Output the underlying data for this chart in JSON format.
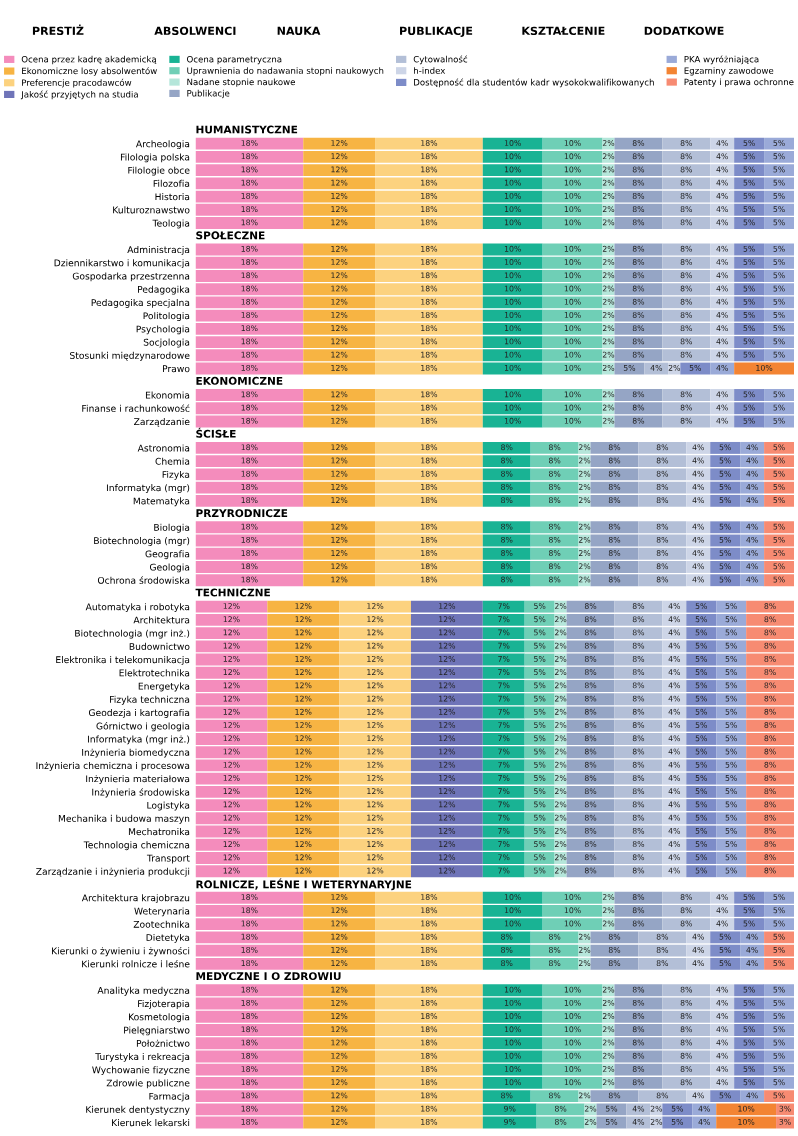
{
  "chart_data": {
    "type": "bar",
    "orientation": "horizontal",
    "stacked": true,
    "xlim": [
      0,
      100
    ],
    "tick_labels": "y",
    "grid": false,
    "legend": "top",
    "annotations": [
      "PRESTIŻ",
      "ABSOLWENCI",
      "NAUKA",
      "PUBLIKACJE",
      "KSZTAŁCENIE",
      "DODATKOWE"
    ],
    "categories": [
      "HUMANISTYCZNE",
      "Archeologia",
      "Filologia polska",
      "Filologie obce",
      "Filozofia",
      "Historia",
      "Kulturoznawstwo",
      "Teologia",
      "SPOŁECZNE",
      "Administracja",
      "Dziennikarstwo i komunikacja",
      "Gospodarka przestrzenna",
      "Pedagogika",
      "Pedagogika specjalna",
      "Politologia",
      "Psychologia",
      "Socjologia",
      "Stosunki międzynarodowe",
      "Prawo",
      "EKONOMICZNE",
      "Ekonomia",
      "Finanse i rachunkowość",
      "Zarządzanie",
      "ŚCISŁE",
      "Astronomia",
      "Chemia",
      "Fizyka",
      "Informatyka (mgr)",
      "Matematyka",
      "PRZYRODNICZE",
      "Biologia",
      "Biotechnologia (mgr)",
      "Geografia",
      "Geologia",
      "Ochrona środowiska",
      "TECHNICZNE",
      "Automatyka i robotyka",
      "Architektura",
      "Biotechnologia (mgr inż.)",
      "Budownictwo",
      "Elektronika i telekomunikacja",
      "Elektrotechnika",
      "Energetyka",
      "Fizyka techniczna",
      "Geodezja i kartografia",
      "Górnictwo i geologia",
      "Informatyka (mgr inż.)",
      "Inżynieria biomedyczna",
      "Inżynieria chemiczna i procesowa",
      "Inżynieria materiałowa",
      "Inżynieria środowiska",
      "Logistyka",
      "Mechanika i budowa maszyn",
      "Mechatronika",
      "Technologia chemiczna",
      "Transport",
      "Zarządzanie i inżynieria produkcji",
      "ROLNICZE, LEŚNE I WETERYNARYJNE",
      "Architektura krajobrazu",
      "Weterynaria",
      "Zootechnika",
      "Dietetyka",
      "Kierunki o żywieniu i żywności",
      "Kierunki rolnicze i leśne",
      "MEDYCZNE I O ZDROWIU",
      "Analityka medyczna",
      "Fizjoterapia",
      "Kosmetologia",
      "Pielęgniarstwo",
      "Położnictwo",
      "Turystyka i rekreacja",
      "Wychowanie fizyczne",
      "Zdrowie publiczne",
      "Farmacja",
      "Kierunek dentystyczny",
      "Kierunek lekarski"
    ],
    "series": [
      {
        "name": "Ocena przez kadrę akademicką",
        "color": "#f48cbc",
        "values": [
          null,
          18,
          18,
          18,
          18,
          18,
          18,
          18,
          null,
          18,
          18,
          18,
          18,
          18,
          18,
          18,
          18,
          18,
          18,
          null,
          18,
          18,
          18,
          null,
          18,
          18,
          18,
          18,
          18,
          null,
          18,
          18,
          18,
          18,
          18,
          null,
          12,
          12,
          12,
          12,
          12,
          12,
          12,
          12,
          12,
          12,
          12,
          12,
          12,
          12,
          12,
          12,
          12,
          12,
          12,
          12,
          12,
          null,
          18,
          18,
          18,
          18,
          18,
          18,
          null,
          18,
          18,
          18,
          18,
          18,
          18,
          18,
          18,
          18,
          18,
          18
        ],
        "value_labels": [
          null,
          "18%",
          "18%",
          "18%",
          "18%",
          "18%",
          "18%",
          "18%",
          null,
          "18%",
          "18%",
          "18%",
          "18%",
          "18%",
          "18%",
          "18%",
          "18%",
          "18%",
          "18%",
          null,
          "18%",
          "18%",
          "18%",
          null,
          "18%",
          "18%",
          "18%",
          "18%",
          "18%",
          null,
          "18%",
          "18%",
          "18%",
          "18%",
          "18%",
          null,
          "12%",
          "12%",
          "12%",
          "12%",
          "12%",
          "12%",
          "12%",
          "12%",
          "12%",
          "12%",
          "12%",
          "12%",
          "12%",
          "12%",
          "12%",
          "12%",
          "12%",
          "12%",
          "12%",
          "12%",
          "12%",
          null,
          "18%",
          "18%",
          "18%",
          "18%",
          "18%",
          "18%",
          null,
          "18%",
          "18%",
          "18%",
          "18%",
          "18%",
          "18%",
          "18%",
          "18%",
          "18%",
          "18%",
          "18%"
        ]
      },
      {
        "name": "Ekonomiczne losy absolwentów",
        "color": "#f7b443",
        "values": [
          null,
          12,
          12,
          12,
          12,
          12,
          12,
          12,
          null,
          12,
          12,
          12,
          12,
          12,
          12,
          12,
          12,
          12,
          12,
          null,
          12,
          12,
          12,
          null,
          12,
          12,
          12,
          12,
          12,
          null,
          12,
          12,
          12,
          12,
          12,
          null,
          12,
          12,
          12,
          12,
          12,
          12,
          12,
          12,
          12,
          12,
          12,
          12,
          12,
          12,
          12,
          12,
          12,
          12,
          12,
          12,
          12,
          null,
          12,
          12,
          12,
          12,
          12,
          12,
          null,
          12,
          12,
          12,
          12,
          12,
          12,
          12,
          12,
          12,
          12,
          12
        ],
        "value_labels": [
          null,
          "12%",
          "12%",
          "12%",
          "12%",
          "12%",
          "12%",
          "12%",
          null,
          "12%",
          "12%",
          "12%",
          "12%",
          "12%",
          "12%",
          "12%",
          "12%",
          "12%",
          "12%",
          null,
          "12%",
          "12%",
          "12%",
          null,
          "12%",
          "12%",
          "12%",
          "12%",
          "12%",
          null,
          "12%",
          "12%",
          "12%",
          "12%",
          "12%",
          null,
          "12%",
          "12%",
          "12%",
          "12%",
          "12%",
          "12%",
          "12%",
          "12%",
          "12%",
          "12%",
          "12%",
          "12%",
          "12%",
          "12%",
          "12%",
          "12%",
          "12%",
          "12%",
          "12%",
          "12%",
          "12%",
          null,
          "12%",
          "12%",
          "12%",
          "12%",
          "12%",
          "12%",
          null,
          "12%",
          "12%",
          "12%",
          "12%",
          "12%",
          "12%",
          "12%",
          "12%",
          "12%",
          "12%",
          "12%"
        ]
      },
      {
        "name": "Preferencje pracodawców",
        "color": "#fcd27f",
        "values": [
          null,
          18,
          18,
          18,
          18,
          18,
          18,
          18,
          null,
          18,
          18,
          18,
          18,
          18,
          18,
          18,
          18,
          18,
          18,
          null,
          18,
          18,
          18,
          null,
          18,
          18,
          18,
          18,
          18,
          null,
          18,
          18,
          18,
          18,
          18,
          null,
          12,
          12,
          12,
          12,
          12,
          12,
          12,
          12,
          12,
          12,
          12,
          12,
          12,
          12,
          12,
          12,
          12,
          12,
          12,
          12,
          12,
          null,
          18,
          18,
          18,
          18,
          18,
          18,
          null,
          18,
          18,
          18,
          18,
          18,
          18,
          18,
          18,
          18,
          18,
          18
        ],
        "value_labels": [
          null,
          "18%",
          "18%",
          "18%",
          "18%",
          "18%",
          "18%",
          "18%",
          null,
          "18%",
          "18%",
          "18%",
          "18%",
          "18%",
          "18%",
          "18%",
          "18%",
          "18%",
          "18%",
          null,
          "18%",
          "18%",
          "18%",
          null,
          "18%",
          "18%",
          "18%",
          "18%",
          "18%",
          null,
          "18%",
          "18%",
          "18%",
          "18%",
          "18%",
          null,
          "12%",
          "12%",
          "12%",
          "12%",
          "12%",
          "12%",
          "12%",
          "12%",
          "12%",
          "12%",
          "12%",
          "12%",
          "12%",
          "12%",
          "12%",
          "12%",
          "12%",
          "12%",
          "12%",
          "12%",
          "12%",
          null,
          "18%",
          "18%",
          "18%",
          "18%",
          "18%",
          "18%",
          null,
          "18%",
          "18%",
          "18%",
          "18%",
          "18%",
          "18%",
          "18%",
          "18%",
          "18%",
          "18%",
          "18%"
        ]
      },
      {
        "name": "Jakość przyjętych na studia",
        "color": "#6f74b8",
        "values": [
          null,
          null,
          null,
          null,
          null,
          null,
          null,
          null,
          null,
          null,
          null,
          null,
          null,
          null,
          null,
          null,
          null,
          null,
          null,
          null,
          null,
          null,
          null,
          null,
          null,
          null,
          null,
          null,
          null,
          null,
          null,
          null,
          null,
          null,
          null,
          null,
          12,
          12,
          12,
          12,
          12,
          12,
          12,
          12,
          12,
          12,
          12,
          12,
          12,
          12,
          12,
          12,
          12,
          12,
          12,
          12,
          12,
          null,
          null,
          null,
          null,
          null,
          null,
          null,
          null,
          null,
          null,
          null,
          null,
          null,
          null,
          null,
          null,
          null,
          null,
          null
        ],
        "value_labels": [
          null,
          null,
          null,
          null,
          null,
          null,
          null,
          null,
          null,
          null,
          null,
          null,
          null,
          null,
          null,
          null,
          null,
          null,
          null,
          null,
          null,
          null,
          null,
          null,
          null,
          null,
          null,
          null,
          null,
          null,
          null,
          null,
          null,
          null,
          null,
          null,
          "12%",
          "12%",
          "12%",
          "12%",
          "12%",
          "12%",
          "12%",
          "12%",
          "12%",
          "12%",
          "12%",
          "12%",
          "12%",
          "12%",
          "12%",
          "12%",
          "12%",
          "12%",
          "12%",
          "12%",
          "12%",
          null,
          null,
          null,
          null,
          null,
          null,
          null,
          null,
          null,
          null,
          null,
          null,
          null,
          null,
          null,
          null,
          null,
          null,
          null
        ]
      },
      {
        "name": "Ocena parametryczna",
        "color": "#19b394",
        "values": [
          null,
          10,
          10,
          10,
          10,
          10,
          10,
          10,
          null,
          10,
          10,
          10,
          10,
          10,
          10,
          10,
          10,
          10,
          10,
          null,
          10,
          10,
          10,
          null,
          8,
          8,
          8,
          8,
          8,
          null,
          8,
          8,
          8,
          8,
          8,
          null,
          7,
          7,
          7,
          7,
          7,
          7,
          7,
          7,
          7,
          7,
          7,
          7,
          7,
          7,
          7,
          7,
          7,
          7,
          7,
          7,
          7,
          null,
          10,
          10,
          10,
          8,
          8,
          8,
          null,
          10,
          10,
          10,
          10,
          10,
          10,
          10,
          10,
          8,
          9,
          9
        ],
        "value_labels": [
          null,
          "10%",
          "10%",
          "10%",
          "10%",
          "10%",
          "10%",
          "10%",
          null,
          "10%",
          "10%",
          "10%",
          "10%",
          "10%",
          "10%",
          "10%",
          "10%",
          "10%",
          "10%",
          null,
          "10%",
          "10%",
          "10%",
          null,
          "8%",
          "8%",
          "8%",
          "8%",
          "8%",
          null,
          "8%",
          "8%",
          "8%",
          "8%",
          "8%",
          null,
          "7%",
          "7%",
          "7%",
          "7%",
          "7%",
          "7%",
          "7%",
          "7%",
          "7%",
          "7%",
          "7%",
          "7%",
          "7%",
          "7%",
          "7%",
          "7%",
          "7%",
          "7%",
          "7%",
          "7%",
          "7%",
          null,
          "10%",
          "10%",
          "10%",
          "8%",
          "8%",
          "8%",
          null,
          "10%",
          "10%",
          "10%",
          "10%",
          "10%",
          "10%",
          "10%",
          "10%",
          "8%",
          "9%",
          "9%"
        ]
      },
      {
        "name": "Uprawnienia do nadawania stopni naukowych",
        "color": "#6fcfb6",
        "values": [
          null,
          10,
          10,
          10,
          10,
          10,
          10,
          10,
          null,
          10,
          10,
          10,
          10,
          10,
          10,
          10,
          10,
          10,
          10,
          null,
          10,
          10,
          10,
          null,
          8,
          8,
          8,
          8,
          8,
          null,
          8,
          8,
          8,
          8,
          8,
          null,
          5,
          5,
          5,
          5,
          5,
          5,
          5,
          5,
          5,
          5,
          5,
          5,
          5,
          5,
          5,
          5,
          5,
          5,
          5,
          5,
          5,
          null,
          10,
          10,
          10,
          8,
          8,
          8,
          null,
          10,
          10,
          10,
          10,
          10,
          10,
          10,
          10,
          8,
          8,
          8
        ],
        "value_labels": [
          null,
          "10%",
          "10%",
          "10%",
          "10%",
          "10%",
          "10%",
          "10%",
          null,
          "10%",
          "10%",
          "10%",
          "10%",
          "10%",
          "10%",
          "10%",
          "10%",
          "10%",
          "10%",
          null,
          "10%",
          "10%",
          "10%",
          null,
          "8%",
          "8%",
          "8%",
          "8%",
          "8%",
          null,
          "8%",
          "8%",
          "8%",
          "8%",
          "8%",
          null,
          "5%",
          "5%",
          "5%",
          "5%",
          "5%",
          "5%",
          "5%",
          "5%",
          "5%",
          "5%",
          "5%",
          "5%",
          "5%",
          "5%",
          "5%",
          "5%",
          "5%",
          "5%",
          "5%",
          "5%",
          "5%",
          null,
          "10%",
          "10%",
          "10%",
          "8%",
          "8%",
          "8%",
          null,
          "10%",
          "10%",
          "10%",
          "10%",
          "10%",
          "10%",
          "10%",
          "10%",
          "8%",
          "8%",
          "8%"
        ]
      },
      {
        "name": "Nadane stopnie naukowe",
        "color": "#b5e6da",
        "values": [
          null,
          2,
          2,
          2,
          2,
          2,
          2,
          2,
          null,
          2,
          2,
          2,
          2,
          2,
          2,
          2,
          2,
          2,
          2,
          null,
          2,
          2,
          2,
          null,
          2,
          2,
          2,
          2,
          2,
          null,
          2,
          2,
          2,
          2,
          2,
          null,
          2,
          2,
          2,
          2,
          2,
          2,
          2,
          2,
          2,
          2,
          2,
          2,
          2,
          2,
          2,
          2,
          2,
          2,
          2,
          2,
          2,
          null,
          2,
          2,
          2,
          2,
          2,
          2,
          null,
          2,
          2,
          2,
          2,
          2,
          2,
          2,
          2,
          2,
          2,
          2
        ],
        "value_labels": [
          null,
          "2%",
          "2%",
          "2%",
          "2%",
          "2%",
          "2%",
          "2%",
          null,
          "2%",
          "2%",
          "2%",
          "2%",
          "2%",
          "2%",
          "2%",
          "2%",
          "2%",
          "2%",
          null,
          "2%",
          "2%",
          "2%",
          null,
          "2%",
          "2%",
          "2%",
          "2%",
          "2%",
          null,
          "2%",
          "2%",
          "2%",
          "2%",
          "2%",
          null,
          "2%",
          "2%",
          "2%",
          "2%",
          "2%",
          "2%",
          "2%",
          "2%",
          "2%",
          "2%",
          "2%",
          "2%",
          "2%",
          "2%",
          "2%",
          "2%",
          "2%",
          "2%",
          "2%",
          "2%",
          "2%",
          null,
          "2%",
          "2%",
          "2%",
          "2%",
          "2%",
          "2%",
          null,
          "2%",
          "2%",
          "2%",
          "2%",
          "2%",
          "2%",
          "2%",
          "2%",
          "2%",
          "2%",
          "2%"
        ]
      },
      {
        "name": "Publikacje",
        "color": "#95a5c5",
        "values": [
          null,
          8,
          8,
          8,
          8,
          8,
          8,
          8,
          null,
          8,
          8,
          8,
          8,
          8,
          8,
          8,
          8,
          8,
          5,
          null,
          8,
          8,
          8,
          null,
          8,
          8,
          8,
          8,
          8,
          null,
          8,
          8,
          8,
          8,
          8,
          null,
          8,
          8,
          8,
          8,
          8,
          8,
          8,
          8,
          8,
          8,
          8,
          8,
          8,
          8,
          8,
          8,
          8,
          8,
          8,
          8,
          8,
          null,
          8,
          8,
          8,
          8,
          8,
          8,
          null,
          8,
          8,
          8,
          8,
          8,
          8,
          8,
          8,
          8,
          5,
          5
        ],
        "value_labels": [
          null,
          "8%",
          "8%",
          "8%",
          "8%",
          "8%",
          "8%",
          "8%",
          null,
          "8%",
          "8%",
          "8%",
          "8%",
          "8%",
          "8%",
          "8%",
          "8%",
          "8%",
          "5%",
          null,
          "8%",
          "8%",
          "8%",
          null,
          "8%",
          "8%",
          "8%",
          "8%",
          "8%",
          null,
          "8%",
          "8%",
          "8%",
          "8%",
          "8%",
          null,
          "8%",
          "8%",
          "8%",
          "8%",
          "8%",
          "8%",
          "8%",
          "8%",
          "8%",
          "8%",
          "8%",
          "8%",
          "8%",
          "8%",
          "8%",
          "8%",
          "8%",
          "8%",
          "8%",
          "8%",
          "8%",
          null,
          "8%",
          "8%",
          "8%",
          "8%",
          "8%",
          "8%",
          null,
          "8%",
          "8%",
          "8%",
          "8%",
          "8%",
          "8%",
          "8%",
          "8%",
          "8%",
          "5%",
          "5%"
        ]
      },
      {
        "name": "Cytowalność",
        "color": "#b3bfd7",
        "values": [
          null,
          8,
          8,
          8,
          8,
          8,
          8,
          8,
          null,
          8,
          8,
          8,
          8,
          8,
          8,
          8,
          8,
          8,
          4,
          null,
          8,
          8,
          8,
          null,
          8,
          8,
          8,
          8,
          8,
          null,
          8,
          8,
          8,
          8,
          8,
          null,
          8,
          8,
          8,
          8,
          8,
          8,
          8,
          8,
          8,
          8,
          8,
          8,
          8,
          8,
          8,
          8,
          8,
          8,
          8,
          8,
          8,
          null,
          8,
          8,
          8,
          8,
          8,
          8,
          null,
          8,
          8,
          8,
          8,
          8,
          8,
          8,
          8,
          8,
          4,
          4
        ],
        "value_labels": [
          null,
          "8%",
          "8%",
          "8%",
          "8%",
          "8%",
          "8%",
          "8%",
          null,
          "8%",
          "8%",
          "8%",
          "8%",
          "8%",
          "8%",
          "8%",
          "8%",
          "8%",
          "4%",
          null,
          "8%",
          "8%",
          "8%",
          null,
          "8%",
          "8%",
          "8%",
          "8%",
          "8%",
          null,
          "8%",
          "8%",
          "8%",
          "8%",
          "8%",
          null,
          "8%",
          "8%",
          "8%",
          "8%",
          "8%",
          "8%",
          "8%",
          "8%",
          "8%",
          "8%",
          "8%",
          "8%",
          "8%",
          "8%",
          "8%",
          "8%",
          "8%",
          "8%",
          "8%",
          "8%",
          "8%",
          null,
          "8%",
          "8%",
          "8%",
          "8%",
          "8%",
          "8%",
          null,
          "8%",
          "8%",
          "8%",
          "8%",
          "8%",
          "8%",
          "8%",
          "8%",
          "8%",
          "4%",
          "4%"
        ]
      },
      {
        "name": "h-index",
        "color": "#cdd5e7",
        "values": [
          null,
          4,
          4,
          4,
          4,
          4,
          4,
          4,
          null,
          4,
          4,
          4,
          4,
          4,
          4,
          4,
          4,
          4,
          2,
          null,
          4,
          4,
          4,
          null,
          4,
          4,
          4,
          4,
          4,
          null,
          4,
          4,
          4,
          4,
          4,
          null,
          4,
          4,
          4,
          4,
          4,
          4,
          4,
          4,
          4,
          4,
          4,
          4,
          4,
          4,
          4,
          4,
          4,
          4,
          4,
          4,
          4,
          null,
          4,
          4,
          4,
          4,
          4,
          4,
          null,
          4,
          4,
          4,
          4,
          4,
          4,
          4,
          4,
          4,
          2,
          2
        ],
        "value_labels": [
          null,
          "4%",
          "4%",
          "4%",
          "4%",
          "4%",
          "4%",
          "4%",
          null,
          "4%",
          "4%",
          "4%",
          "4%",
          "4%",
          "4%",
          "4%",
          "4%",
          "4%",
          "2%",
          null,
          "4%",
          "4%",
          "4%",
          null,
          "4%",
          "4%",
          "4%",
          "4%",
          "4%",
          null,
          "4%",
          "4%",
          "4%",
          "4%",
          "4%",
          null,
          "4%",
          "4%",
          "4%",
          "4%",
          "4%",
          "4%",
          "4%",
          "4%",
          "4%",
          "4%",
          "4%",
          "4%",
          "4%",
          "4%",
          "4%",
          "4%",
          "4%",
          "4%",
          "4%",
          "4%",
          "4%",
          null,
          "4%",
          "4%",
          "4%",
          "4%",
          "4%",
          "4%",
          null,
          "4%",
          "4%",
          "4%",
          "4%",
          "4%",
          "4%",
          "4%",
          "4%",
          "4%",
          "2%",
          "2%"
        ]
      },
      {
        "name": "Dostępność dla studentów kadr wysokokwalifikowanych",
        "color": "#7d8cc8",
        "values": [
          null,
          5,
          5,
          5,
          5,
          5,
          5,
          5,
          null,
          5,
          5,
          5,
          5,
          5,
          5,
          5,
          5,
          5,
          5,
          null,
          5,
          5,
          5,
          null,
          5,
          5,
          5,
          5,
          5,
          null,
          5,
          5,
          5,
          5,
          5,
          null,
          5,
          5,
          5,
          5,
          5,
          5,
          5,
          5,
          5,
          5,
          5,
          5,
          5,
          5,
          5,
          5,
          5,
          5,
          5,
          5,
          5,
          null,
          5,
          5,
          5,
          5,
          5,
          5,
          null,
          5,
          5,
          5,
          5,
          5,
          5,
          5,
          5,
          5,
          5,
          5
        ],
        "value_labels": [
          null,
          "5%",
          "5%",
          "5%",
          "5%",
          "5%",
          "5%",
          "5%",
          null,
          "5%",
          "5%",
          "5%",
          "5%",
          "5%",
          "5%",
          "5%",
          "5%",
          "5%",
          "5%",
          null,
          "5%",
          "5%",
          "5%",
          null,
          "5%",
          "5%",
          "5%",
          "5%",
          "5%",
          null,
          "5%",
          "5%",
          "5%",
          "5%",
          "5%",
          null,
          "5%",
          "5%",
          "5%",
          "5%",
          "5%",
          "5%",
          "5%",
          "5%",
          "5%",
          "5%",
          "5%",
          "5%",
          "5%",
          "5%",
          "5%",
          "5%",
          "5%",
          "5%",
          "5%",
          "5%",
          "5%",
          null,
          "5%",
          "5%",
          "5%",
          "5%",
          "5%",
          "5%",
          null,
          "5%",
          "5%",
          "5%",
          "5%",
          "5%",
          "5%",
          "5%",
          "5%",
          "5%",
          "5%",
          "5%"
        ]
      },
      {
        "name": "PKA wyróżniająca",
        "color": "#9aaad8",
        "values": [
          null,
          5,
          5,
          5,
          5,
          5,
          5,
          5,
          null,
          5,
          5,
          5,
          5,
          5,
          5,
          5,
          5,
          5,
          4,
          null,
          5,
          5,
          5,
          null,
          4,
          4,
          4,
          4,
          4,
          null,
          4,
          4,
          4,
          4,
          4,
          null,
          5,
          5,
          5,
          5,
          5,
          5,
          5,
          5,
          5,
          5,
          5,
          5,
          5,
          5,
          5,
          5,
          5,
          5,
          5,
          5,
          5,
          null,
          5,
          5,
          5,
          4,
          4,
          4,
          null,
          5,
          5,
          5,
          5,
          5,
          5,
          5,
          5,
          4,
          4,
          4
        ],
        "value_labels": [
          null,
          "5%",
          "5%",
          "5%",
          "5%",
          "5%",
          "5%",
          "5%",
          null,
          "5%",
          "5%",
          "5%",
          "5%",
          "5%",
          "5%",
          "5%",
          "5%",
          "5%",
          "4%",
          null,
          "5%",
          "5%",
          "5%",
          null,
          "4%",
          "4%",
          "4%",
          "4%",
          "4%",
          null,
          "4%",
          "4%",
          "4%",
          "4%",
          "4%",
          null,
          "5%",
          "5%",
          "5%",
          "5%",
          "5%",
          "5%",
          "5%",
          "5%",
          "5%",
          "5%",
          "5%",
          "5%",
          "5%",
          "5%",
          "5%",
          "5%",
          "5%",
          "5%",
          "5%",
          "5%",
          "5%",
          null,
          "5%",
          "5%",
          "5%",
          "4%",
          "4%",
          "4%",
          null,
          "5%",
          "5%",
          "5%",
          "5%",
          "5%",
          "5%",
          "5%",
          "5%",
          "4%",
          "4%",
          "4%"
        ]
      },
      {
        "name": "Egzaminy zawodowe",
        "color": "#f38433",
        "values": [
          null,
          null,
          null,
          null,
          null,
          null,
          null,
          null,
          null,
          null,
          null,
          null,
          null,
          null,
          null,
          null,
          null,
          null,
          10,
          null,
          null,
          null,
          null,
          null,
          null,
          null,
          null,
          null,
          null,
          null,
          null,
          null,
          null,
          null,
          null,
          null,
          null,
          null,
          null,
          null,
          null,
          null,
          null,
          null,
          null,
          null,
          null,
          null,
          null,
          null,
          null,
          null,
          null,
          null,
          null,
          null,
          null,
          null,
          null,
          null,
          null,
          null,
          null,
          null,
          null,
          null,
          null,
          null,
          null,
          null,
          null,
          null,
          null,
          null,
          10,
          10
        ],
        "value_labels": [
          null,
          null,
          null,
          null,
          null,
          null,
          null,
          null,
          null,
          null,
          null,
          null,
          null,
          null,
          null,
          null,
          null,
          null,
          "10%",
          null,
          null,
          null,
          null,
          null,
          null,
          null,
          null,
          null,
          null,
          null,
          null,
          null,
          null,
          null,
          null,
          null,
          null,
          null,
          null,
          null,
          null,
          null,
          null,
          null,
          null,
          null,
          null,
          null,
          null,
          null,
          null,
          null,
          null,
          null,
          null,
          null,
          null,
          null,
          null,
          null,
          null,
          null,
          null,
          null,
          null,
          null,
          null,
          null,
          null,
          null,
          null,
          null,
          null,
          null,
          "10%",
          "10%"
        ]
      },
      {
        "name": "Patenty i prawa ochronne",
        "color": "#f78b72",
        "values": [
          null,
          null,
          null,
          null,
          null,
          null,
          null,
          null,
          null,
          null,
          null,
          null,
          null,
          null,
          null,
          null,
          null,
          null,
          null,
          null,
          null,
          null,
          null,
          null,
          5,
          5,
          5,
          5,
          5,
          null,
          5,
          5,
          5,
          5,
          5,
          null,
          8,
          8,
          8,
          8,
          8,
          8,
          8,
          8,
          8,
          8,
          8,
          8,
          8,
          8,
          8,
          8,
          8,
          8,
          8,
          8,
          8,
          null,
          null,
          null,
          null,
          5,
          5,
          5,
          null,
          null,
          null,
          null,
          null,
          null,
          null,
          null,
          null,
          5,
          3,
          3
        ],
        "value_labels": [
          null,
          null,
          null,
          null,
          null,
          null,
          null,
          null,
          null,
          null,
          null,
          null,
          null,
          null,
          null,
          null,
          null,
          null,
          null,
          null,
          null,
          null,
          null,
          null,
          "5%",
          "5%",
          "5%",
          "5%",
          "5%",
          null,
          "5%",
          "5%",
          "5%",
          "5%",
          "5%",
          null,
          "8%",
          "8%",
          "8%",
          "8%",
          "8%",
          "8%",
          "8%",
          "8%",
          "8%",
          "8%",
          "8%",
          "8%",
          "8%",
          "8%",
          "8%",
          "8%",
          "8%",
          "8%",
          "8%",
          "8%",
          "8%",
          null,
          null,
          null,
          null,
          "5%",
          "5%",
          "5%",
          null,
          null,
          null,
          null,
          null,
          null,
          null,
          null,
          null,
          "5%",
          "3%",
          "3%"
        ]
      }
    ]
  }
}
